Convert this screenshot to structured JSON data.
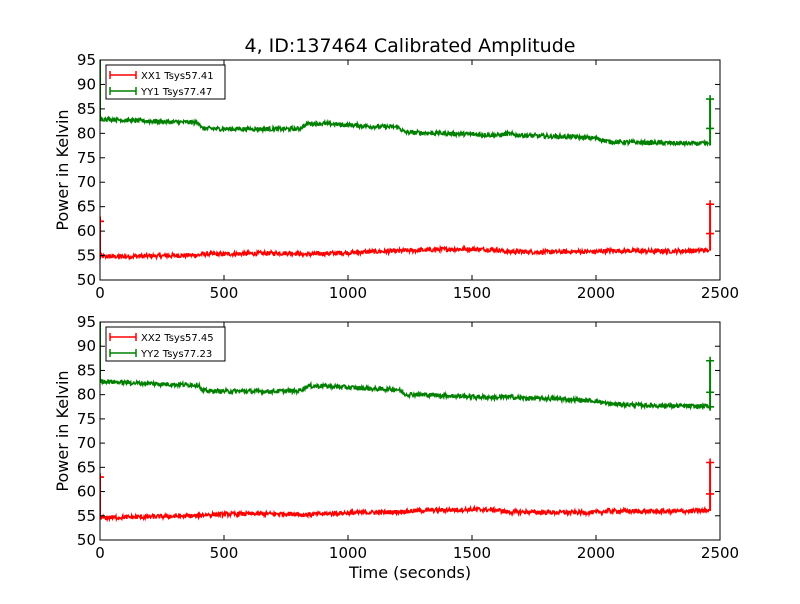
{
  "chart_data": [
    {
      "type": "line",
      "title": "4, ID:137464 Calibrated Amplitude",
      "xlabel": "",
      "ylabel": "Power in Kelvin",
      "xlim": [
        0,
        2500
      ],
      "ylim": [
        50,
        95
      ],
      "xticks": [
        0,
        500,
        1000,
        1500,
        2000,
        2500
      ],
      "yticks": [
        50,
        55,
        60,
        65,
        70,
        75,
        80,
        85,
        90,
        95
      ],
      "grid": false,
      "legend_position": "top-left",
      "series": [
        {
          "name": "XX1 Tsys57.41",
          "color": "#ff0000",
          "x": [
            0,
            100,
            200,
            300,
            400,
            410,
            500,
            600,
            700,
            800,
            810,
            900,
            1000,
            1100,
            1200,
            1230,
            1300,
            1400,
            1500,
            1600,
            1640,
            1700,
            1800,
            1900,
            2000,
            2050,
            2100,
            2200,
            2300,
            2400,
            2455
          ],
          "y": [
            54.8,
            54.8,
            54.9,
            55.0,
            55.1,
            55.3,
            55.3,
            55.4,
            55.5,
            55.5,
            55.2,
            55.4,
            55.6,
            55.8,
            55.9,
            56.0,
            56.1,
            56.3,
            56.3,
            56.2,
            55.8,
            55.8,
            55.7,
            55.8,
            55.8,
            56.0,
            56.0,
            55.9,
            55.9,
            56.0,
            56.1
          ],
          "spikes": [
            {
              "x": 0,
              "low": 55.0,
              "high": 63.0
            },
            {
              "x": 2460,
              "low": 56.0,
              "high": 65.5
            }
          ],
          "markers": [
            {
              "x": 0,
              "y": 62.0
            },
            {
              "x": 2460,
              "y": 59.5
            },
            {
              "x": 2460,
              "y": 65.5
            }
          ]
        },
        {
          "name": "YY1 Tsys77.47",
          "color": "#008000",
          "x": [
            0,
            100,
            200,
            300,
            400,
            410,
            500,
            600,
            700,
            800,
            840,
            900,
            1000,
            1100,
            1200,
            1230,
            1300,
            1400,
            1500,
            1600,
            1640,
            1700,
            1800,
            1900,
            2000,
            2050,
            2100,
            2200,
            2300,
            2400,
            2455
          ],
          "y": [
            83.0,
            82.7,
            82.5,
            82.3,
            82.2,
            81.0,
            80.9,
            80.9,
            80.9,
            80.9,
            82.0,
            82.0,
            81.7,
            81.4,
            81.3,
            80.2,
            80.1,
            80.0,
            79.8,
            79.6,
            79.9,
            79.6,
            79.4,
            79.3,
            79.0,
            78.3,
            78.2,
            78.1,
            78.0,
            77.9,
            77.9
          ],
          "spikes": [
            {
              "x": 0,
              "low": 82.5,
              "high": 95.0
            },
            {
              "x": 2460,
              "low": 77.5,
              "high": 87.0
            }
          ],
          "markers": [
            {
              "x": 2460,
              "y": 87.0
            },
            {
              "x": 2460,
              "y": 81.0
            }
          ]
        }
      ]
    },
    {
      "type": "line",
      "title": "",
      "xlabel": "Time (seconds)",
      "ylabel": "Power in Kelvin",
      "xlim": [
        0,
        2500
      ],
      "ylim": [
        50,
        95
      ],
      "xticks": [
        0,
        500,
        1000,
        1500,
        2000,
        2500
      ],
      "yticks": [
        50,
        55,
        60,
        65,
        70,
        75,
        80,
        85,
        90,
        95
      ],
      "grid": false,
      "legend_position": "top-left",
      "series": [
        {
          "name": "XX2 Tsys57.45",
          "color": "#ff0000",
          "x": [
            0,
            100,
            200,
            300,
            400,
            410,
            500,
            600,
            700,
            800,
            810,
            900,
            1000,
            1100,
            1200,
            1230,
            1300,
            1400,
            1500,
            1600,
            1640,
            1700,
            1800,
            1900,
            2000,
            2050,
            2100,
            2200,
            2300,
            2400,
            2455
          ],
          "y": [
            54.6,
            54.7,
            54.8,
            54.9,
            55.0,
            55.2,
            55.3,
            55.4,
            55.4,
            55.4,
            55.2,
            55.4,
            55.6,
            55.7,
            55.8,
            55.9,
            56.1,
            56.2,
            56.3,
            56.2,
            55.8,
            55.8,
            55.7,
            55.7,
            55.7,
            56.0,
            56.0,
            55.9,
            55.9,
            56.0,
            56.1
          ],
          "spikes": [
            {
              "x": 0,
              "low": 55.0,
              "high": 63.5
            },
            {
              "x": 2460,
              "low": 56.0,
              "high": 66.0
            }
          ],
          "markers": [
            {
              "x": 0,
              "y": 63.0
            },
            {
              "x": 2460,
              "y": 59.5
            },
            {
              "x": 2460,
              "y": 66.0
            }
          ]
        },
        {
          "name": "YY2 Tsys77.23",
          "color": "#008000",
          "x": [
            0,
            100,
            200,
            300,
            400,
            410,
            500,
            600,
            700,
            800,
            840,
            900,
            1000,
            1100,
            1200,
            1230,
            1300,
            1400,
            1500,
            1600,
            1640,
            1700,
            1800,
            1900,
            2000,
            2050,
            2100,
            2200,
            2300,
            2400,
            2455
          ],
          "y": [
            82.8,
            82.5,
            82.3,
            82.1,
            82.0,
            80.8,
            80.7,
            80.7,
            80.7,
            80.8,
            81.8,
            81.8,
            81.5,
            81.2,
            81.1,
            80.1,
            80.0,
            79.8,
            79.6,
            79.4,
            79.6,
            79.3,
            79.2,
            79.0,
            78.7,
            78.1,
            78.0,
            77.8,
            77.7,
            77.6,
            77.6
          ],
          "spikes": [
            {
              "x": 0,
              "low": 82.5,
              "high": 95.0
            },
            {
              "x": 2460,
              "low": 77.0,
              "high": 87.0
            }
          ],
          "markers": [
            {
              "x": 2460,
              "y": 87.0
            },
            {
              "x": 2460,
              "y": 80.5
            },
            {
              "x": 2460,
              "y": 77.5
            }
          ]
        }
      ]
    }
  ]
}
